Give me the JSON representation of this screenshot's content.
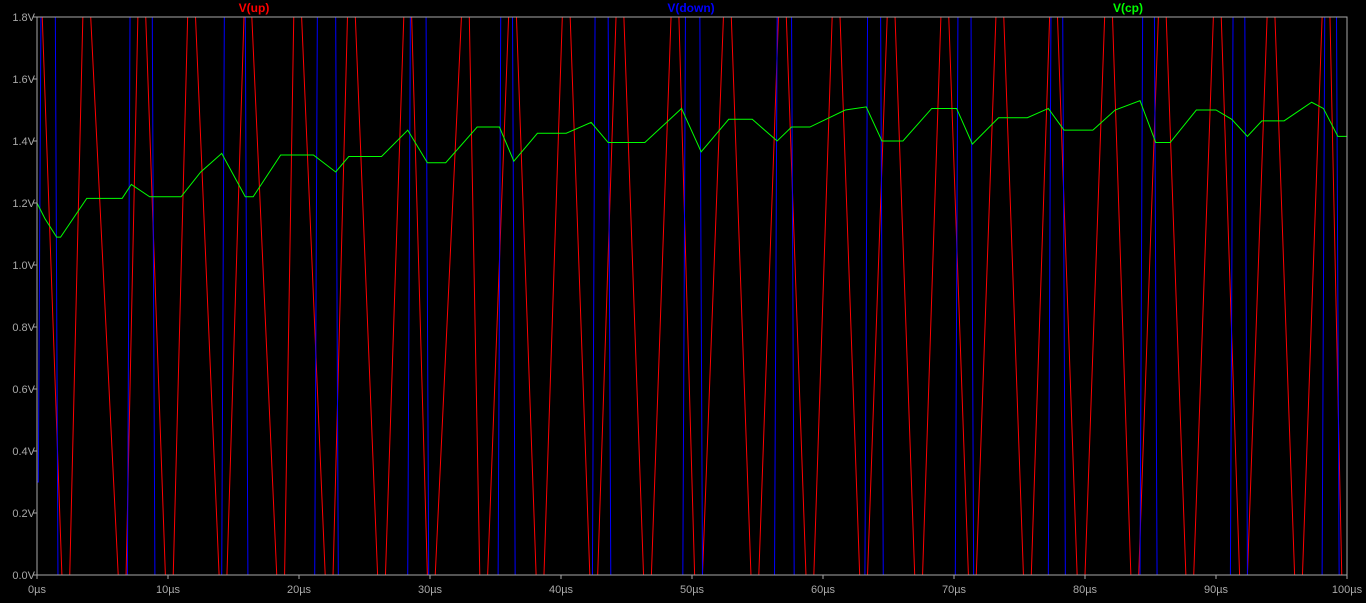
{
  "chart_data": {
    "type": "line",
    "title": "",
    "xlabel": "",
    "ylabel": "",
    "xlim": [
      0,
      100
    ],
    "ylim": [
      0,
      1.8
    ],
    "grid": false,
    "legend": "top",
    "x_unit": "µs",
    "y_unit": "V",
    "x_ticks": [
      {
        "value": 0,
        "label": "0µs"
      },
      {
        "value": 10,
        "label": "10µs"
      },
      {
        "value": 20,
        "label": "20µs"
      },
      {
        "value": 30,
        "label": "30µs"
      },
      {
        "value": 40,
        "label": "40µs"
      },
      {
        "value": 50,
        "label": "50µs"
      },
      {
        "value": 60,
        "label": "60µs"
      },
      {
        "value": 70,
        "label": "70µs"
      },
      {
        "value": 80,
        "label": "80µs"
      },
      {
        "value": 90,
        "label": "90µs"
      },
      {
        "value": 100,
        "label": "100µs"
      }
    ],
    "y_ticks": [
      {
        "value": 0.0,
        "label": "0.0V"
      },
      {
        "value": 0.2,
        "label": "0.2V"
      },
      {
        "value": 0.4,
        "label": "0.4V"
      },
      {
        "value": 0.6,
        "label": "0.6V"
      },
      {
        "value": 0.8,
        "label": "0.8V"
      },
      {
        "value": 1.0,
        "label": "1.0V"
      },
      {
        "value": 1.2,
        "label": "1.2V"
      },
      {
        "value": 1.4,
        "label": "1.4V"
      },
      {
        "value": 1.6,
        "label": "1.6V"
      },
      {
        "value": 1.8,
        "label": "1.8V"
      }
    ],
    "series": [
      {
        "name": "V(up)",
        "color": "#ff0000",
        "x": [
          0,
          0.4,
          1.9,
          2.5,
          3.5,
          4.1,
          6.2,
          6.8,
          7.7,
          8.3,
          9.8,
          10.4,
          11.5,
          12.1,
          13.9,
          14.5,
          15.8,
          16.4,
          18.3,
          18.9,
          19.6,
          20.2,
          22.0,
          22.6,
          23.7,
          24.3,
          26.0,
          26.6,
          28.0,
          28.6,
          29.8,
          30.4,
          32.4,
          33.0,
          33.8,
          34.4,
          36.0,
          36.6,
          38.1,
          38.7,
          40.1,
          40.7,
          42.2,
          42.8,
          44.2,
          44.8,
          46.3,
          46.9,
          48.4,
          49.0,
          50.2,
          50.8,
          52.4,
          53.0,
          54.5,
          55.1,
          56.6,
          57.2,
          58.7,
          59.3,
          60.7,
          61.3,
          62.8,
          63.4,
          64.9,
          65.5,
          67.0,
          67.6,
          69.0,
          69.6,
          71.1,
          71.7,
          73.2,
          73.8,
          75.3,
          75.9,
          77.3,
          77.9,
          79.4,
          80.0,
          81.5,
          82.1,
          83.5,
          84.1,
          85.6,
          86.2,
          87.7,
          88.3,
          89.8,
          90.4,
          91.8,
          92.4,
          93.9,
          94.5,
          96.0,
          96.6,
          98.1,
          98.7,
          99.6,
          100
        ],
        "y": [
          1.8,
          1.8,
          0,
          0,
          1.8,
          1.8,
          0,
          0,
          1.8,
          1.8,
          0,
          0,
          1.8,
          1.8,
          0,
          0,
          1.8,
          1.8,
          0,
          0,
          1.8,
          1.8,
          0,
          0,
          1.8,
          1.8,
          0,
          0,
          1.8,
          1.8,
          0,
          0,
          1.8,
          1.8,
          0,
          0,
          1.8,
          1.8,
          0,
          0,
          1.8,
          1.8,
          0,
          0,
          1.8,
          1.8,
          0,
          0,
          1.8,
          1.8,
          0,
          0,
          1.8,
          1.8,
          0,
          0,
          1.8,
          1.8,
          0,
          0,
          1.8,
          1.8,
          0,
          0,
          1.8,
          1.8,
          0,
          0,
          1.8,
          1.8,
          0,
          0,
          1.8,
          1.8,
          0,
          0,
          1.8,
          1.8,
          0,
          0,
          1.8,
          1.8,
          0,
          0,
          1.8,
          1.8,
          0,
          0,
          1.8,
          1.8,
          0,
          0,
          1.8,
          1.8,
          0,
          0,
          1.8,
          1.8,
          0,
          0
        ]
      },
      {
        "name": "V(down)",
        "color": "#0000ff",
        "x": [
          0,
          0.1,
          0.3,
          1.4,
          1.6,
          6.9,
          7.1,
          8.8,
          9.0,
          14.1,
          14.3,
          15.9,
          16.1,
          21.2,
          21.4,
          22.8,
          23.0,
          28.3,
          28.5,
          29.7,
          29.9,
          35.2,
          35.4,
          36.3,
          36.5,
          42.4,
          42.6,
          43.6,
          43.8,
          49.3,
          49.5,
          50.6,
          50.8,
          56.3,
          56.5,
          57.6,
          57.8,
          63.2,
          63.4,
          64.4,
          64.6,
          70.1,
          70.3,
          71.3,
          71.5,
          77.2,
          77.4,
          78.3,
          78.5,
          84.2,
          84.4,
          85.3,
          85.5,
          91.1,
          91.3,
          92.2,
          92.4,
          98.1,
          98.3,
          99.2,
          99.4,
          100
        ],
        "y": [
          0.3,
          0.3,
          1.8,
          1.8,
          0,
          0,
          1.8,
          1.8,
          0,
          0,
          1.8,
          1.8,
          0,
          0,
          1.8,
          1.8,
          0,
          0,
          1.8,
          1.8,
          0,
          0,
          1.8,
          1.8,
          0,
          0,
          1.8,
          1.8,
          0,
          0,
          1.8,
          1.8,
          0,
          0,
          1.8,
          1.8,
          0,
          0,
          1.8,
          1.8,
          0,
          0,
          1.8,
          1.8,
          0,
          0,
          1.8,
          1.8,
          0,
          0,
          1.8,
          1.8,
          0,
          0,
          1.8,
          1.8,
          0,
          0,
          1.8,
          1.8,
          0,
          0
        ]
      },
      {
        "name": "V(cp)",
        "color": "#00ff00",
        "x": [
          0,
          0.6,
          1.5,
          1.8,
          3.8,
          6.5,
          7.2,
          8.6,
          11.0,
          12.5,
          14.1,
          15.9,
          16.5,
          18.6,
          21.1,
          22.8,
          23.8,
          26.3,
          28.3,
          29.8,
          31.2,
          33.6,
          35.3,
          36.4,
          38.2,
          40.4,
          42.3,
          43.6,
          46.4,
          49.2,
          50.7,
          52.8,
          54.6,
          56.5,
          57.6,
          59.0,
          61.7,
          63.3,
          64.5,
          66.1,
          68.3,
          70.2,
          71.4,
          73.4,
          75.6,
          77.2,
          78.4,
          80.6,
          82.3,
          84.2,
          85.4,
          86.5,
          88.5,
          90.0,
          91.2,
          92.4,
          93.5,
          95.2,
          97.3,
          98.2,
          99.3,
          100
        ],
        "y": [
          1.2,
          1.15,
          1.09,
          1.09,
          1.215,
          1.215,
          1.26,
          1.22,
          1.22,
          1.3,
          1.36,
          1.22,
          1.22,
          1.355,
          1.355,
          1.3,
          1.35,
          1.35,
          1.435,
          1.33,
          1.33,
          1.445,
          1.445,
          1.335,
          1.425,
          1.425,
          1.46,
          1.395,
          1.395,
          1.505,
          1.365,
          1.47,
          1.47,
          1.4,
          1.445,
          1.445,
          1.5,
          1.51,
          1.4,
          1.4,
          1.505,
          1.505,
          1.39,
          1.475,
          1.475,
          1.505,
          1.435,
          1.435,
          1.5,
          1.53,
          1.395,
          1.395,
          1.5,
          1.5,
          1.47,
          1.415,
          1.465,
          1.465,
          1.525,
          1.505,
          1.415,
          1.415
        ]
      }
    ]
  }
}
